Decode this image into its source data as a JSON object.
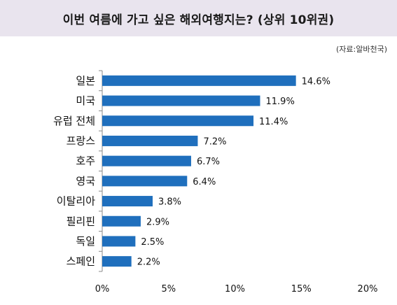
{
  "header": {
    "title": "이번 여름에 가고 싶은 해외여행지는? (상위 10위권)",
    "source": "(자료:알바천국)"
  },
  "colors": {
    "bar": "#1f6fbd",
    "title_band": "#e9e4ee",
    "axis": "#888888"
  },
  "chart_data": {
    "type": "bar",
    "orientation": "horizontal",
    "title": "이번 여름에 가고 싶은 해외여행지는? (상위 10위권)",
    "xlabel": "",
    "ylabel": "",
    "categories": [
      "일본",
      "미국",
      "유럽 전체",
      "프랑스",
      "호주",
      "영국",
      "이탈리아",
      "필리핀",
      "독일",
      "스페인"
    ],
    "values": [
      14.6,
      11.9,
      11.4,
      7.2,
      6.7,
      6.4,
      3.8,
      2.9,
      2.5,
      2.2
    ],
    "value_labels": [
      "14.6%",
      "11.9%",
      "11.4%",
      "7.2%",
      "6.7%",
      "6.4%",
      "3.8%",
      "2.9%",
      "2.5%",
      "2.2%"
    ],
    "xlim": [
      0,
      20
    ],
    "xticks": [
      0,
      5,
      10,
      15,
      20
    ],
    "xtick_labels": [
      "0%",
      "5%",
      "10%",
      "15%",
      "20%"
    ],
    "grid": false,
    "legend": "none"
  }
}
